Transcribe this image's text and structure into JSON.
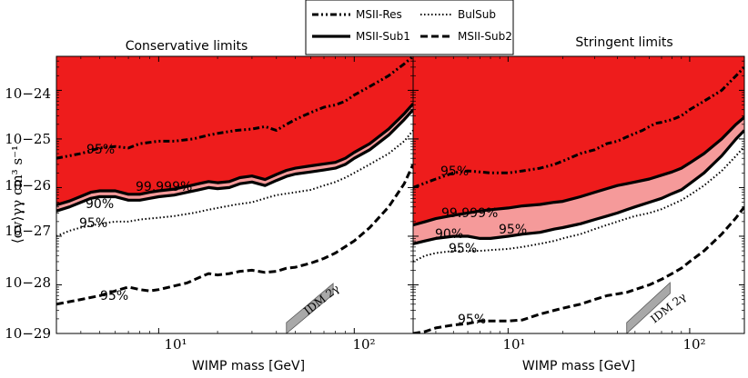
{
  "chart_data": {
    "type": "area",
    "ylabel": "⟨σv⟩γγ cm³ s⁻¹",
    "shared_xlabel": "WIMP mass [GeV]",
    "xscale": "log",
    "yscale": "log",
    "xlim": [
      3,
      200
    ],
    "ylim": [
      1e-29,
      5e-24
    ],
    "y_tick_labels": [
      "10−24",
      "10−25",
      "10−26",
      "10−27",
      "10−28",
      "10−29"
    ],
    "x_tick_labels": [
      "10¹",
      "10²"
    ],
    "colors": {
      "excluded_strong": "#ee1c1c",
      "excluded_band": "#f59a9a",
      "idm": "#a8a8a8"
    },
    "legend": {
      "placement": "top-center",
      "entries": [
        {
          "name": "MSII-Res",
          "style": "dash-dot-dot"
        },
        {
          "name": "BulSub",
          "style": "dotted"
        },
        {
          "name": "MSII-Sub1",
          "style": "solid"
        },
        {
          "name": "MSII-Sub2",
          "style": "dashed"
        }
      ]
    },
    "panels": [
      {
        "title": "Conservative limits",
        "xlabel": "WIMP mass [GeV]",
        "idm_label": "IDM 2γ",
        "annotations": [
          {
            "text": "95%",
            "x": 5.2,
            "y": 5.5e-26
          },
          {
            "text": "99.999%",
            "x": 6.0,
            "y": 8e-27
          },
          {
            "text": "90%",
            "x": 4.5,
            "y": 3.5e-27
          },
          {
            "text": "95%",
            "x": 4.5,
            "y": 1.3e-27
          },
          {
            "text": "95%",
            "x": 5.0,
            "y": 2e-29
          }
        ],
        "series": [
          {
            "name": "MSII-Res",
            "x": [
              3,
              4,
              5,
              6,
              7,
              8,
              10,
              12,
              15,
              18,
              20,
              25,
              30,
              35,
              40,
              45,
              50,
              55,
              60,
              65,
              70,
              80,
              90,
              100,
              120,
              150,
              180,
              200
            ],
            "y": [
              4e-26,
              5e-26,
              6.5e-26,
              7e-26,
              6.5e-26,
              8e-26,
              9e-26,
              9e-26,
              1e-25,
              1.2e-25,
              1.3e-25,
              1.5e-25,
              1.6e-25,
              1.8e-25,
              1.5e-25,
              2e-25,
              2.5e-25,
              3e-25,
              3.5e-25,
              4e-25,
              4.5e-25,
              5e-25,
              6e-25,
              8e-25,
              1.2e-24,
              2e-24,
              3.5e-24,
              5e-24
            ]
          },
          {
            "name": "BulSub",
            "x": [
              3,
              3.5,
              4,
              5,
              6,
              7,
              8,
              10,
              12,
              15,
              18,
              20,
              25,
              30,
              35,
              40,
              45,
              50,
              60,
              70,
              80,
              90,
              100,
              120,
              150,
              180,
              200
            ],
            "y": [
              1e-27,
              1.3e-27,
              1.5e-27,
              1.8e-27,
              2e-27,
              2e-27,
              2.2e-27,
              2.4e-27,
              2.6e-27,
              3e-27,
              3.5e-27,
              3.8e-27,
              4.5e-27,
              5e-27,
              6e-27,
              7e-27,
              7.5e-27,
              8e-27,
              9e-27,
              1.1e-26,
              1.3e-26,
              1.6e-26,
              2e-26,
              3e-26,
              5e-26,
              9e-26,
              1.5e-25
            ]
          },
          {
            "name": "MSII-Sub1 (90%)",
            "x": [
              3,
              3.5,
              4,
              4.5,
              5,
              6,
              7,
              8,
              9,
              10,
              12,
              14,
              16,
              18,
              20,
              23,
              26,
              30,
              35,
              40,
              45,
              50,
              60,
              70,
              80,
              90,
              100,
              120,
              150,
              180,
              200
            ],
            "y": [
              3.3e-27,
              4e-27,
              5e-27,
              6e-27,
              6.5e-27,
              6.5e-27,
              5.5e-27,
              5.5e-27,
              6e-27,
              6.5e-27,
              7e-27,
              8e-27,
              9e-27,
              1e-26,
              9.5e-27,
              1e-26,
              1.2e-26,
              1.3e-26,
              1.1e-26,
              1.4e-26,
              1.7e-26,
              1.9e-26,
              2.1e-26,
              2.3e-26,
              2.5e-26,
              3e-26,
              4e-26,
              6e-26,
              1.2e-25,
              2.5e-25,
              4e-25
            ]
          },
          {
            "name": "MSII-Sub1 (99.999%)",
            "x": [
              3,
              3.5,
              4,
              4.5,
              5,
              6,
              7,
              8,
              9,
              10,
              12,
              14,
              16,
              18,
              20,
              23,
              26,
              30,
              35,
              40,
              45,
              50,
              60,
              70,
              80,
              90,
              100,
              120,
              150,
              180,
              200
            ],
            "y": [
              4.4e-27,
              5.3e-27,
              6.6e-27,
              8e-27,
              8.6e-27,
              8.6e-27,
              7.3e-27,
              7.3e-27,
              8e-27,
              8.6e-27,
              9.3e-27,
              1.06e-26,
              1.2e-26,
              1.33e-26,
              1.26e-26,
              1.33e-26,
              1.6e-26,
              1.73e-26,
              1.46e-26,
              1.86e-26,
              2.26e-26,
              2.5e-26,
              2.8e-26,
              3.06e-26,
              3.3e-26,
              4e-26,
              5.3e-26,
              8e-26,
              1.6e-25,
              3.3e-25,
              5.3e-25
            ]
          },
          {
            "name": "MSII-Sub2",
            "x": [
              3,
              3.5,
              4,
              5,
              6,
              7,
              8,
              9,
              10,
              12,
              14,
              16,
              18,
              20,
              23,
              26,
              30,
              35,
              40,
              45,
              50,
              60,
              70,
              80,
              100,
              120,
              150,
              180,
              200
            ],
            "y": [
              4e-29,
              4.5e-29,
              5e-29,
              6e-29,
              7.5e-29,
              9e-29,
              8e-29,
              7.5e-29,
              8e-29,
              9.5e-29,
              1.1e-28,
              1.4e-28,
              1.7e-28,
              1.6e-28,
              1.7e-28,
              1.9e-28,
              2e-28,
              1.8e-28,
              1.9e-28,
              2.2e-28,
              2.3e-28,
              2.8e-28,
              3.5e-28,
              4.5e-28,
              8e-28,
              1.5e-27,
              4e-27,
              1.2e-26,
              3e-26
            ]
          }
        ]
      },
      {
        "title": "Stringent limits",
        "xlabel": "WIMP mass [GeV]",
        "idm_label": "IDM 2γ",
        "annotations": [
          {
            "text": "95%",
            "x": 4.3,
            "y": 2e-26
          },
          {
            "text": "99.999%",
            "x": 4.6,
            "y": 3e-27
          },
          {
            "text": "90%",
            "x": 4.0,
            "y": 1.05e-27
          },
          {
            "text": "95%",
            "x": 11.0,
            "y": 1.3e-27
          },
          {
            "text": "95%",
            "x": 5.2,
            "y": 5.5e-28
          },
          {
            "text": "95%",
            "x": 5.5,
            "y": 1.8e-29
          }
        ],
        "series": [
          {
            "name": "MSII-Res",
            "x": [
              3,
              4,
              5,
              6,
              7,
              8,
              10,
              12,
              15,
              18,
              20,
              25,
              30,
              35,
              40,
              45,
              50,
              55,
              60,
              65,
              70,
              80,
              90,
              100,
              120,
              150,
              180,
              200
            ],
            "y": [
              1e-26,
              1.5e-26,
              2e-26,
              2.2e-26,
              2.1e-26,
              2e-26,
              2e-26,
              2.2e-26,
              2.5e-26,
              3e-26,
              3.5e-26,
              5e-26,
              6e-26,
              8e-26,
              9e-26,
              1.1e-25,
              1.3e-25,
              1.5e-25,
              1.8e-25,
              2.1e-25,
              2.2e-25,
              2.5e-25,
              3e-25,
              4e-25,
              6e-25,
              1e-24,
              2e-24,
              3e-24
            ]
          },
          {
            "name": "BulSub",
            "x": [
              3,
              3.5,
              4,
              5,
              6,
              7,
              8,
              10,
              12,
              15,
              18,
              20,
              25,
              30,
              35,
              40,
              45,
              50,
              60,
              70,
              80,
              90,
              100,
              120,
              150,
              180,
              200
            ],
            "y": [
              3e-28,
              4e-28,
              4.5e-28,
              5e-28,
              5e-28,
              5e-28,
              5.2e-28,
              5.5e-28,
              6e-28,
              7e-28,
              8e-28,
              9e-28,
              1.1e-27,
              1.4e-27,
              1.7e-27,
              2e-27,
              2.3e-27,
              2.6e-27,
              3e-27,
              3.6e-27,
              4.5e-27,
              5.5e-27,
              7e-27,
              1.1e-26,
              2.2e-26,
              4.5e-26,
              7e-26
            ]
          },
          {
            "name": "MSII-Sub1 (90%)",
            "x": [
              3,
              3.5,
              4,
              5,
              6,
              7,
              8,
              10,
              12,
              15,
              18,
              20,
              25,
              30,
              35,
              40,
              45,
              50,
              60,
              70,
              80,
              90,
              100,
              120,
              150,
              180,
              200
            ],
            "y": [
              7e-28,
              8e-28,
              9e-28,
              1e-27,
              1e-27,
              9e-28,
              9e-28,
              1e-27,
              1.1e-27,
              1.2e-27,
              1.4e-27,
              1.5e-27,
              1.8e-27,
              2.2e-27,
              2.6e-27,
              3e-27,
              3.5e-27,
              4e-27,
              5e-27,
              6e-27,
              7.5e-27,
              9e-27,
              1.2e-26,
              2e-26,
              4.5e-26,
              1e-25,
              1.5e-25
            ]
          },
          {
            "name": "MSII-Sub1 (99.999%)",
            "x": [
              3,
              3.5,
              4,
              5,
              6,
              7,
              8,
              10,
              12,
              15,
              18,
              20,
              25,
              30,
              35,
              40,
              45,
              50,
              60,
              70,
              80,
              90,
              100,
              120,
              150,
              180,
              200
            ],
            "y": [
              1.7e-27,
              2e-27,
              2.3e-27,
              2.7e-27,
              3e-27,
              3.3e-27,
              3.5e-27,
              3.8e-27,
              4.2e-27,
              4.5e-27,
              5e-27,
              5.2e-27,
              6.5e-27,
              8e-27,
              9.5e-27,
              1.1e-26,
              1.2e-26,
              1.3e-26,
              1.5e-26,
              1.8e-26,
              2.1e-26,
              2.5e-26,
              3.2e-26,
              5e-26,
              1e-25,
              2e-25,
              2.8e-25
            ]
          },
          {
            "name": "MSII-Sub2",
            "x": [
              3,
              3.5,
              4,
              5,
              6,
              7,
              8,
              10,
              12,
              15,
              18,
              20,
              25,
              30,
              35,
              40,
              45,
              50,
              60,
              70,
              80,
              90,
              100,
              120,
              150,
              180,
              200
            ],
            "y": [
              1e-29,
              1.1e-29,
              1.3e-29,
              1.5e-29,
              1.6e-29,
              1.8e-29,
              1.8e-29,
              1.8e-29,
              1.9e-29,
              2.5e-29,
              3e-29,
              3.3e-29,
              4e-29,
              5e-29,
              6e-29,
              6.5e-29,
              7e-29,
              8e-29,
              1e-28,
              1.3e-28,
              1.7e-28,
              2.2e-28,
              3e-28,
              5e-28,
              1.1e-27,
              2.4e-27,
              4e-27
            ]
          }
        ]
      }
    ]
  }
}
